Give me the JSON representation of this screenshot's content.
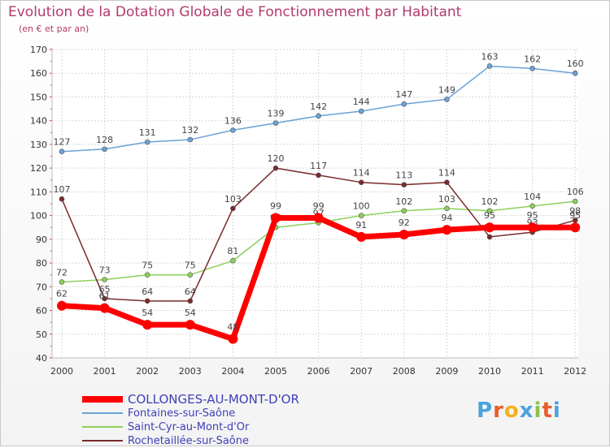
{
  "title": "Evolution de la Dotation Globale de Fonctionnement par Habitant",
  "subtitle": "(en € et par an)",
  "brand": "Proxiti",
  "brand_colors": [
    "#4aa3df",
    "#e85c2c",
    "#f2b21d",
    "#4aa3df",
    "#8bc34a",
    "#e85c2c",
    "#4aa3df"
  ],
  "chart_data": {
    "type": "line",
    "title": "Evolution de la Dotation Globale de Fonctionnement par Habitant",
    "ylabel": "(en € et par an)",
    "xlabel": "",
    "categories": [
      "2000",
      "2001",
      "2002",
      "2003",
      "2004",
      "2005",
      "2006",
      "2007",
      "2008",
      "2009",
      "2010",
      "2011",
      "2012"
    ],
    "ylim": [
      40,
      170
    ],
    "yticks": [
      "40",
      "50",
      "60",
      "70",
      "80",
      "90",
      "100",
      "110",
      "120",
      "130",
      "140",
      "150",
      "160",
      "170"
    ],
    "grid": true,
    "legend": "bottom-left",
    "series": [
      {
        "name": "Fontaines-sur-Saône",
        "color": "#6aa2d8",
        "values": [
          127,
          128,
          131,
          132,
          136,
          139,
          142,
          144,
          147,
          149,
          163,
          162,
          160
        ],
        "labels": [
          "127",
          "128",
          "131",
          "132",
          "136",
          "139",
          "142",
          "144",
          "147",
          "149",
          "163",
          "162",
          "160"
        ]
      },
      {
        "name": "Saint-Cyr-au-Mont-d'Or",
        "color": "#8ed05a",
        "values": [
          72,
          73,
          75,
          75,
          81,
          95,
          97,
          100,
          102,
          103,
          102,
          104,
          106
        ],
        "labels": [
          "72",
          "73",
          "75",
          "75",
          "81",
          "95",
          "97",
          "100",
          "102",
          "103",
          "102",
          "104",
          "106"
        ]
      },
      {
        "name": "Rochetaillée-sur-Saône",
        "color": "#7a2a2a",
        "values": [
          107,
          65,
          64,
          64,
          103,
          120,
          117,
          114,
          113,
          114,
          91,
          93,
          98
        ],
        "labels": [
          "107",
          "65",
          "64",
          "64",
          "103",
          "120",
          "117",
          "114",
          "113",
          "114",
          "91",
          "93",
          "98"
        ]
      },
      {
        "name": "COLLONGES-AU-MONT-D'OR",
        "color": "#ff0000",
        "values": [
          62,
          61,
          54,
          54,
          48,
          99,
          99,
          91,
          92,
          94,
          95,
          95,
          95
        ],
        "labels": [
          "62",
          "61",
          "54",
          "54",
          "48",
          "99",
          "99",
          "91",
          "92",
          "94",
          "95",
          "95",
          "95"
        ]
      }
    ]
  },
  "legend_items": [
    {
      "label": "COLLONGES-AU-MONT-D'OR",
      "color": "#ff0000"
    },
    {
      "label": "Fontaines-sur-Saône",
      "color": "#6aa2d8"
    },
    {
      "label": "Saint-Cyr-au-Mont-d'Or",
      "color": "#8ed05a"
    },
    {
      "label": "Rochetaillée-sur-Saône",
      "color": "#7a2a2a"
    }
  ]
}
